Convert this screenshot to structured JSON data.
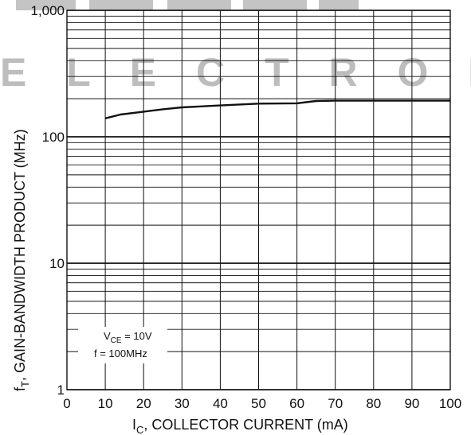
{
  "chart_data": {
    "type": "line",
    "xlabel": {
      "main": "I",
      "sub": "C",
      "rest": ", COLLECTOR CURRENT (mA)"
    },
    "ylabel": {
      "main": "f",
      "sub": "T",
      "rest": ", GAIN-BANDWIDTH PRODUCT (MHz)"
    },
    "x_ticks": [
      "0",
      "10",
      "20",
      "30",
      "40",
      "50",
      "60",
      "70",
      "80",
      "90",
      "100"
    ],
    "y_ticks": [
      "1",
      "10",
      "100",
      "1,000"
    ],
    "xlim": [
      0,
      100
    ],
    "ylim": [
      1,
      1000
    ],
    "y_scale": "log",
    "grid": true,
    "series": [
      {
        "x": [
          10,
          14,
          20,
          25,
          30,
          40,
          50,
          60,
          65,
          70,
          80,
          90,
          100
        ],
        "y": [
          140,
          150,
          158,
          165,
          171,
          177,
          183,
          184,
          192,
          193,
          193,
          193,
          193
        ]
      }
    ],
    "annotation": {
      "line1_main": "V",
      "line1_sub": "CE",
      "line1_rest": " = 10V",
      "line2": "f = 100MHz"
    }
  },
  "watermark": {
    "line1": "E L E C T R O N I C",
    "top_fragment": "ELECT"
  },
  "colors": {
    "watermark": "#bdbdbd",
    "line": "#111111",
    "grid": "#111111"
  }
}
